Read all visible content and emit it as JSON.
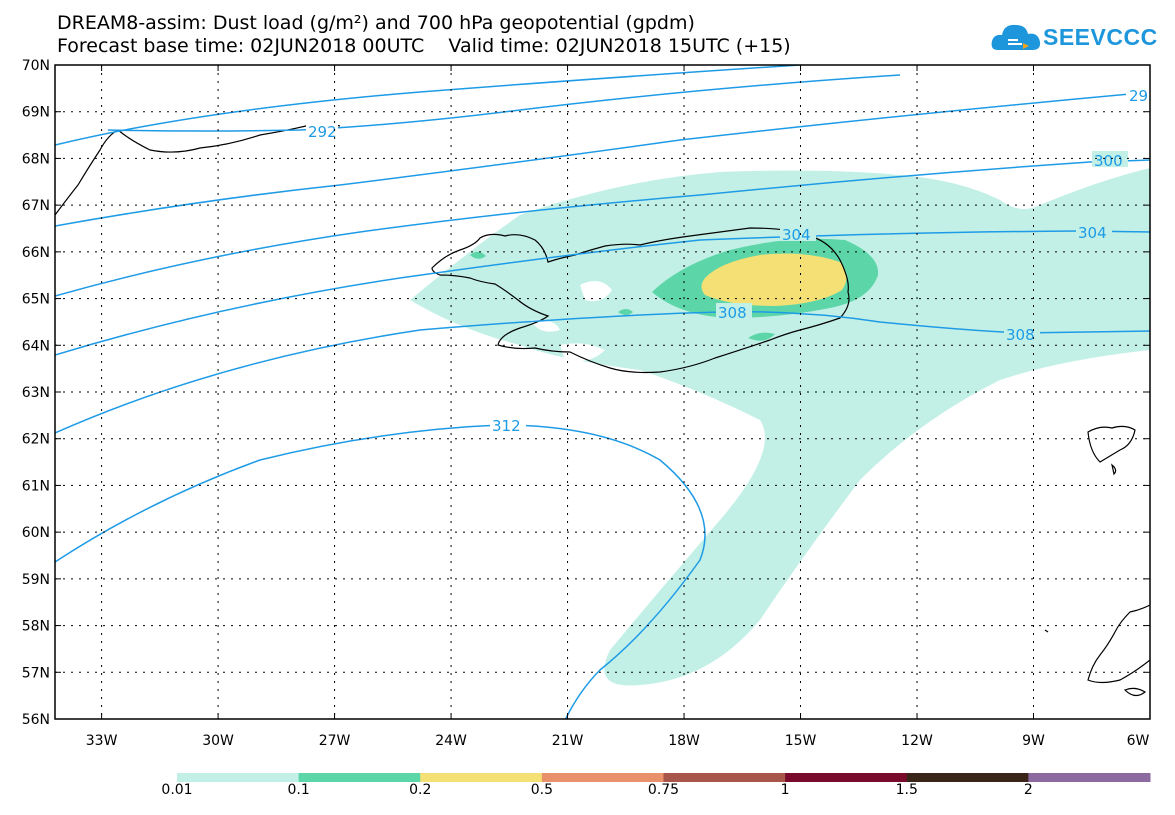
{
  "header": {
    "title_line1": "DREAM8-assim: Dust load (g/m²) and 700 hPa geopotential (gpdm)",
    "title_line2": "Forecast base time: 02JUN2018 00UTC    Valid time: 02JUN2018 15UTC (+15)",
    "logo_text": "SEEVCCC"
  },
  "axes": {
    "lat_labels": [
      "70N",
      "69N",
      "68N",
      "67N",
      "66N",
      "65N",
      "64N",
      "63N",
      "62N",
      "61N",
      "60N",
      "59N",
      "58N",
      "57N",
      "56N"
    ],
    "lon_labels": [
      "33W",
      "30W",
      "27W",
      "24W",
      "21W",
      "18W",
      "15W",
      "12W",
      "9W",
      "6W"
    ]
  },
  "contours": {
    "labels": [
      "292",
      "29",
      "300",
      "304",
      "304",
      "308",
      "308",
      "312"
    ]
  },
  "colorbar": {
    "labels": [
      "0.01",
      "0.1",
      "0.2",
      "0.5",
      "0.75",
      "1",
      "1.5",
      "2"
    ],
    "colors": [
      "#c2f0e6",
      "#5cd6a8",
      "#f5e076",
      "#e8916a",
      "#a8554a",
      "#7a0a2c",
      "#3a2418",
      "#8c6aa0"
    ]
  },
  "map_colors": {
    "contour": "#1e9be6",
    "dust_low": "#c2f0e6",
    "dust_mid": "#5cd6a8",
    "dust_high": "#f5e076"
  }
}
